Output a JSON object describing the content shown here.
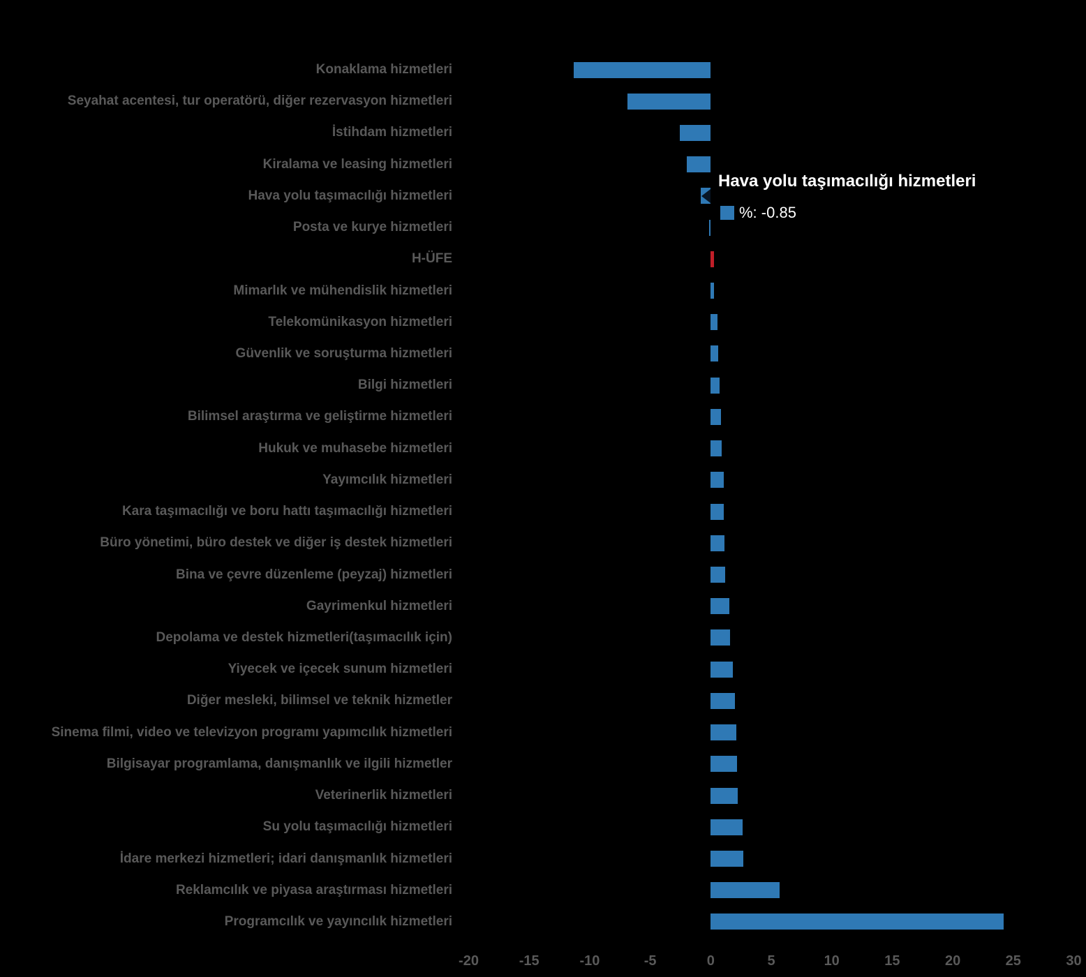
{
  "page": {
    "background_color": "#000000"
  },
  "tooltip": {
    "title": "Hava yolu taşımacılığı hizmetleri",
    "value_label": "%: -0.85",
    "marker_color": "#2F79B5",
    "text_color": "#ffffff"
  },
  "chart_data": {
    "type": "bar",
    "orientation": "horizontal",
    "unit": "%",
    "title": "",
    "xlabel": "",
    "ylabel": "",
    "xlim": [
      -20,
      30
    ],
    "x_ticks": [
      -20,
      -15,
      -10,
      -5,
      0,
      5,
      10,
      15,
      20,
      25,
      30
    ],
    "grid": false,
    "legend": false,
    "bar_color": "#2F79B5",
    "index_color": "#C01E28",
    "label_color": "#595959",
    "index_category": "H-ÜFE",
    "highlighted_category": "Hava yolu taşımacılığı hizmetleri",
    "categories": [
      "Konaklama hizmetleri",
      "Seyahat acentesi, tur operatörü, diğer rezervasyon hizmetleri",
      "İstihdam hizmetleri",
      "Kiralama ve leasing hizmetleri",
      "Hava yolu taşımacılığı hizmetleri",
      "Posta ve kurye hizmetleri",
      "H-ÜFE",
      "Mimarlık ve mühendislik hizmetleri",
      "Telekomünikasyon hizmetleri",
      "Güvenlik ve soruşturma hizmetleri",
      "Bilgi hizmetleri",
      "Bilimsel araştırma ve geliştirme hizmetleri",
      "Hukuk ve muhasebe hizmetleri",
      "Yayımcılık hizmetleri",
      "Kara taşımacılığı ve boru hattı taşımacılığı hizmetleri",
      "Büro yönetimi, büro destek ve diğer iş destek hizmetleri",
      "Bina ve çevre düzenleme (peyzaj) hizmetleri",
      "Gayrimenkul hizmetleri",
      "Depolama ve destek hizmetleri(taşımacılık için)",
      "Yiyecek ve içecek sunum hizmetleri",
      "Diğer mesleki, bilimsel ve teknik hizmetler",
      "Sinema filmi, video ve televizyon programı yapımcılık hizmetleri",
      "Bilgisayar programlama, danışmanlık ve ilgili hizmetler",
      "Veterinerlik hizmetleri",
      "Su yolu taşımacılığı hizmetleri",
      "İdare merkezi hizmetleri; idari danışmanlık hizmetleri",
      "Reklamcılık ve piyasa araştırması hizmetleri",
      "Programcılık ve yayıncılık hizmetleri"
    ],
    "values": [
      -11.3,
      -6.9,
      -2.55,
      -1.95,
      -0.85,
      -0.1,
      0.25,
      0.3,
      0.55,
      0.6,
      0.75,
      0.85,
      0.9,
      1.05,
      1.05,
      1.15,
      1.2,
      1.55,
      1.6,
      1.8,
      2.0,
      2.1,
      2.15,
      2.25,
      2.65,
      2.7,
      5.7,
      24.2
    ]
  }
}
